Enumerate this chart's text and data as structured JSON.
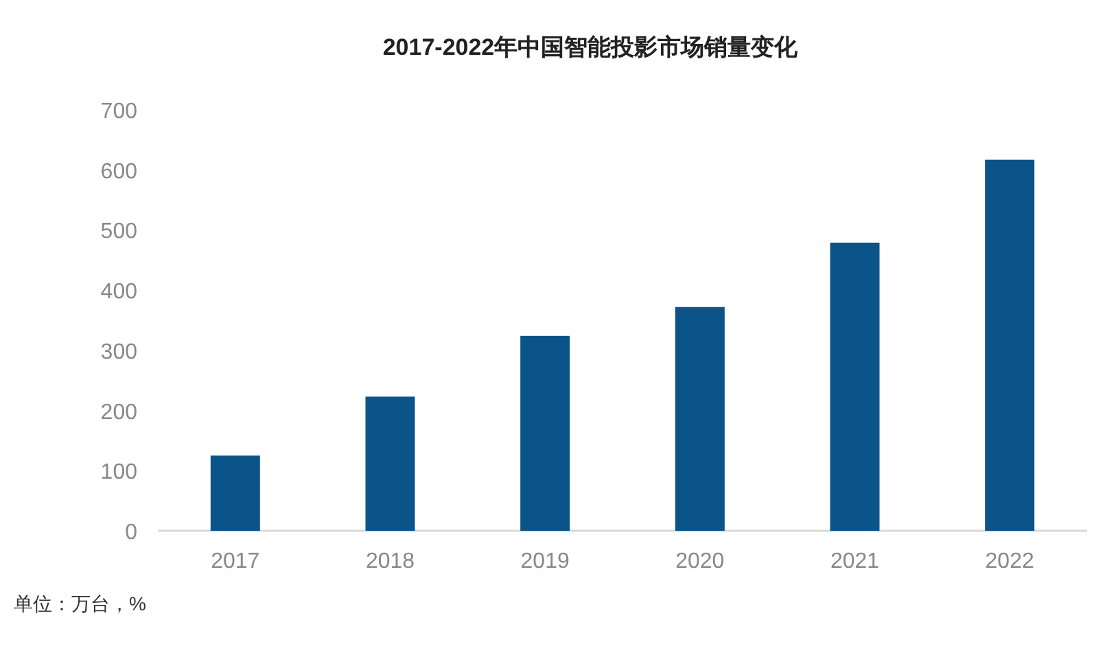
{
  "chart_data": {
    "type": "bar",
    "title": "2017-2022年中国智能投影市场销量变化",
    "categories": [
      "2017",
      "2018",
      "2019",
      "2020",
      "2021",
      "2022"
    ],
    "values": [
      125,
      223,
      324,
      372,
      479,
      617
    ],
    "color": "#0b5489",
    "ylim": [
      0,
      700
    ],
    "yticks": [
      0,
      100,
      200,
      300,
      400,
      500,
      600,
      700
    ],
    "grid": false,
    "annotations": [
      "单位：万台，%"
    ]
  }
}
